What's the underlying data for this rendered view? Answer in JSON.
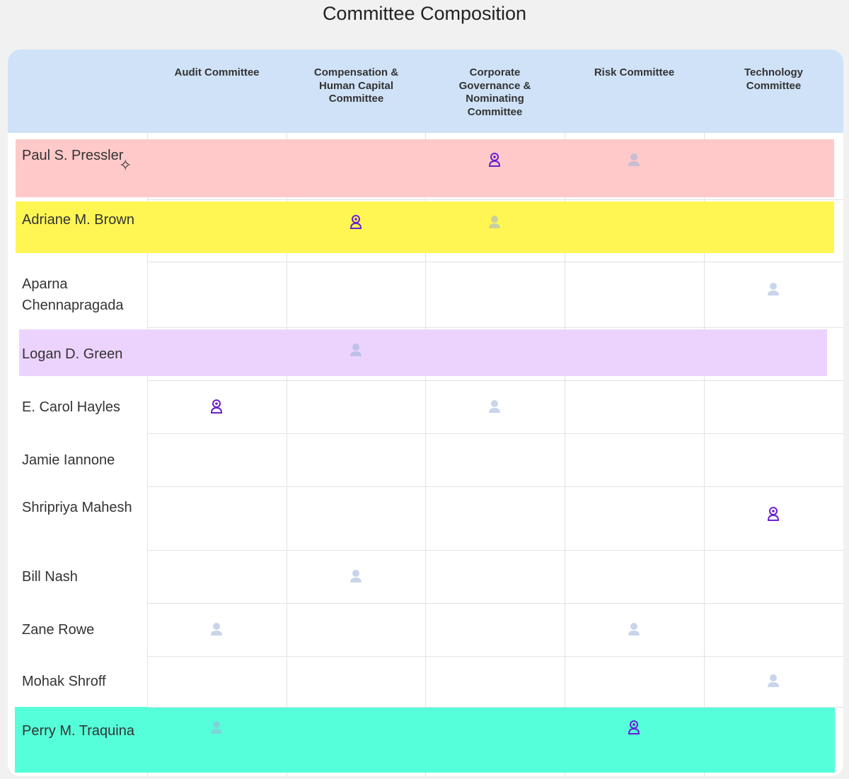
{
  "title": "Committee Composition",
  "committees": [
    "Audit Committee",
    "Compensation & Human Capital Committee",
    "Corporate Governance & Nominating Committee",
    "Risk Committee",
    "Technology Committee"
  ],
  "colors": {
    "header": "#cfe2f7",
    "chair": "#6a1fd0",
    "member": "#9bb3d8"
  },
  "members": [
    {
      "name": "Paul S. Pressler",
      "star": true,
      "highlight": "#ffc9c9",
      "roles": [
        "",
        "",
        "chair",
        "member",
        ""
      ]
    },
    {
      "name": "Adriane M. Brown",
      "highlight": "#fff654",
      "roles": [
        "",
        "chair",
        "member",
        "",
        ""
      ]
    },
    {
      "name": "Aparna Chennapragada",
      "roles": [
        "",
        "",
        "",
        "",
        "member"
      ]
    },
    {
      "name": "Logan D. Green",
      "highlight": "#ecd3fd",
      "roles": [
        "",
        "member",
        "",
        "",
        ""
      ]
    },
    {
      "name": "E. Carol Hayles",
      "roles": [
        "chair",
        "",
        "member",
        "",
        ""
      ]
    },
    {
      "name": "Jamie Iannone",
      "roles": [
        "",
        "",
        "",
        "",
        ""
      ]
    },
    {
      "name": "Shripriya Mahesh",
      "roles": [
        "",
        "",
        "",
        "",
        "chair"
      ]
    },
    {
      "name": "Bill Nash",
      "roles": [
        "",
        "member",
        "",
        "",
        ""
      ]
    },
    {
      "name": "Zane Rowe",
      "roles": [
        "member",
        "",
        "",
        "member",
        ""
      ]
    },
    {
      "name": "Mohak Shroff",
      "roles": [
        "",
        "",
        "",
        "",
        "member"
      ]
    },
    {
      "name": "Perry M. Traquina",
      "highlight": "#55ffd9",
      "roles": [
        "member",
        "",
        "",
        "chair",
        ""
      ]
    }
  ]
}
